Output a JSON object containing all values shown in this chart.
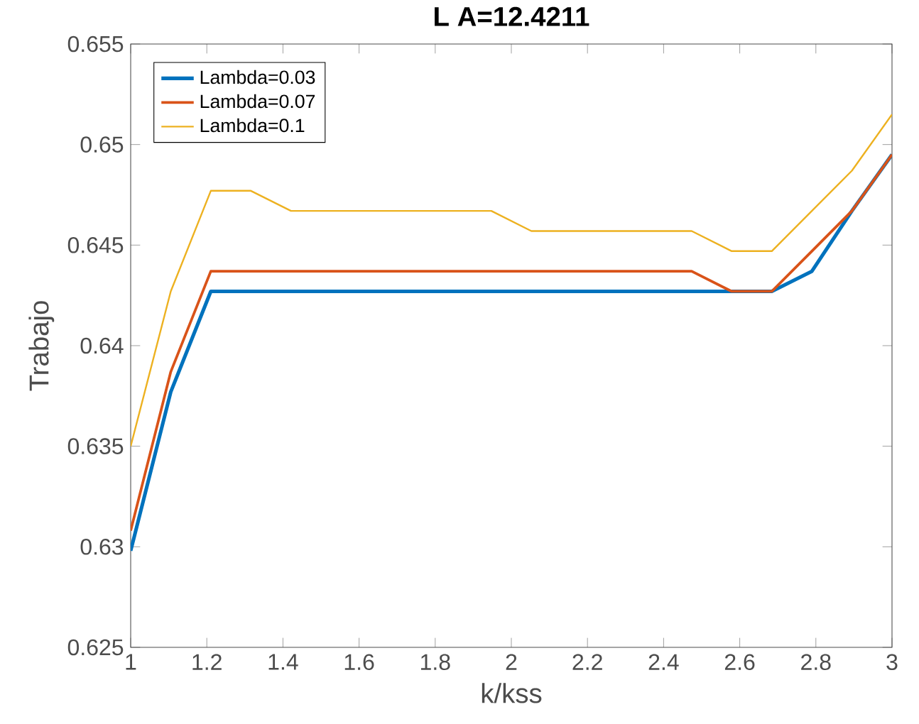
{
  "chart_data": {
    "type": "line",
    "title": "L A=12.4211",
    "xlabel": "k/kss",
    "ylabel": "Trabajo",
    "x": [
      1,
      1.1053,
      1.2105,
      1.3158,
      1.4211,
      1.5263,
      1.6316,
      1.7368,
      1.8421,
      1.9474,
      2.0526,
      2.1579,
      2.2632,
      2.3684,
      2.4737,
      2.5789,
      2.6842,
      2.7895,
      2.8947,
      3
    ],
    "series": [
      {
        "name": "Lambda=0.03",
        "color": "#0072bd",
        "values": [
          0.6298,
          0.6377,
          0.6427,
          0.6427,
          0.6427,
          0.6427,
          0.6427,
          0.6427,
          0.6427,
          0.6427,
          0.6427,
          0.6427,
          0.6427,
          0.6427,
          0.6427,
          0.6427,
          0.6427,
          0.6437,
          0.6467,
          0.6495
        ]
      },
      {
        "name": "Lambda=0.07",
        "color": "#d95319",
        "values": [
          0.6308,
          0.6387,
          0.6437,
          0.6437,
          0.6437,
          0.6437,
          0.6437,
          0.6437,
          0.6437,
          0.6437,
          0.6437,
          0.6437,
          0.6437,
          0.6437,
          0.6437,
          0.6427,
          0.6427,
          0.6447,
          0.6467,
          0.6495
        ]
      },
      {
        "name": "Lambda=0.1",
        "color": "#edb120",
        "values": [
          0.635,
          0.6427,
          0.6477,
          0.6477,
          0.6467,
          0.6467,
          0.6467,
          0.6467,
          0.6467,
          0.6467,
          0.6457,
          0.6457,
          0.6457,
          0.6457,
          0.6457,
          0.6447,
          0.6447,
          0.6467,
          0.6487,
          0.6515
        ]
      }
    ],
    "xlim": [
      1,
      3
    ],
    "ylim": [
      0.625,
      0.655
    ],
    "xticks": [
      1,
      1.2,
      1.4,
      1.6,
      1.8,
      2,
      2.2,
      2.4,
      2.6,
      2.8,
      3
    ],
    "yticks": [
      0.625,
      0.63,
      0.635,
      0.64,
      0.645,
      0.65,
      0.655
    ],
    "legend": "top left"
  }
}
